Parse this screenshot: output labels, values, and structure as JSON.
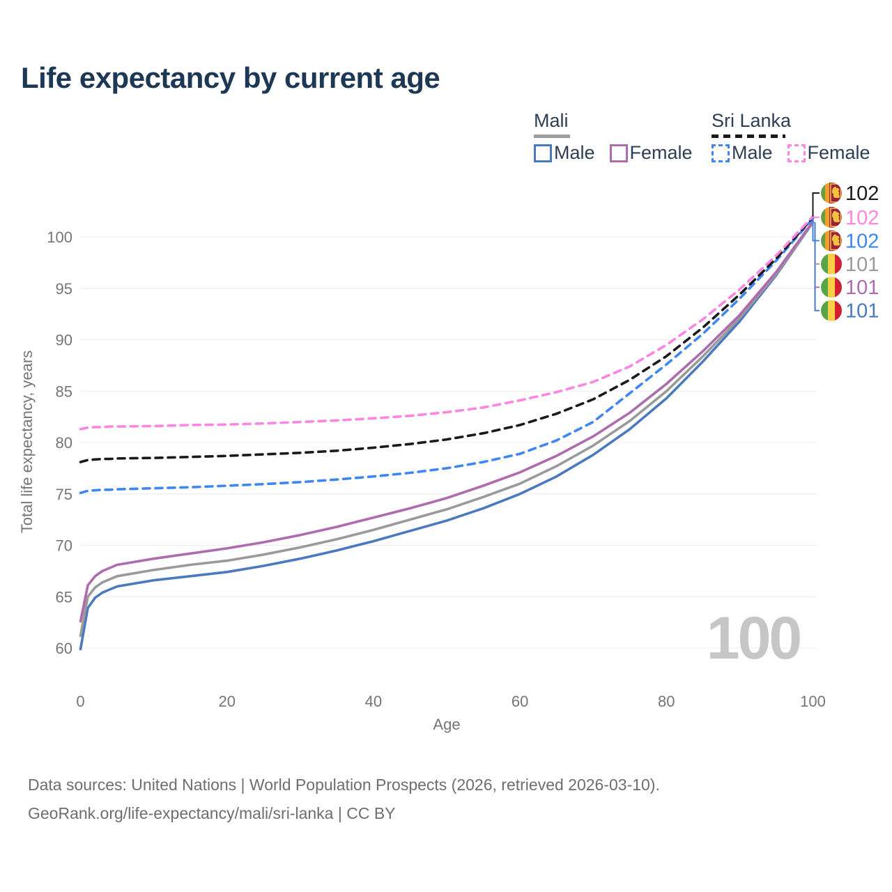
{
  "title": "Life expectancy by current age",
  "watermark": "100",
  "legend": {
    "groups": [
      {
        "label": "Mali",
        "line_style": "solid",
        "underline_color": "#9e9e9e",
        "items": [
          {
            "label": "Male",
            "color": "#4a79bf",
            "dash": false
          },
          {
            "label": "Female",
            "color": "#ae6cae",
            "dash": false
          }
        ]
      },
      {
        "label": "Sri Lanka",
        "line_style": "dashed",
        "underline_color": "#1a1a1a",
        "items": [
          {
            "label": "Male",
            "color": "#3e86f0",
            "dash": true
          },
          {
            "label": "Female",
            "color": "#ff85e2",
            "dash": true
          }
        ]
      }
    ]
  },
  "end_labels": [
    {
      "value": "102",
      "series": "Sri Lanka Total",
      "color": "#1a1a1a",
      "flag": "sri-lanka"
    },
    {
      "value": "102",
      "series": "Sri Lanka Female",
      "color": "#ff85e2",
      "flag": "sri-lanka"
    },
    {
      "value": "102",
      "series": "Sri Lanka Male",
      "color": "#3e86f0",
      "flag": "sri-lanka"
    },
    {
      "value": "101",
      "series": "Mali Total",
      "color": "#9a9a9a",
      "flag": "mali"
    },
    {
      "value": "101",
      "series": "Mali Female",
      "color": "#ae6cae",
      "flag": "mali"
    },
    {
      "value": "101",
      "series": "Mali Male",
      "color": "#4a79bf",
      "flag": "mali"
    }
  ],
  "footer": {
    "line1": "Data sources: United Nations | World Population Prospects (2026, retrieved 2026-03-10).",
    "line2": "GeoRank.org/life-expectancy/mali/sri-lanka | CC BY"
  },
  "colors": {
    "title": "#1d3854",
    "gridline": "#ececec",
    "tick_text": "#757575",
    "watermark": "#c6c6c6",
    "mali_flag": [
      "#57a545",
      "#f6ce47",
      "#d32030"
    ],
    "sri_lanka_flag": [
      "#6a9c41",
      "#efa02f",
      "#9b1f3c",
      "#f2c13e"
    ]
  },
  "chart_data": {
    "type": "line",
    "title": "Life expectancy by current age",
    "xlabel": "Age",
    "ylabel": "Total life expectancy, years",
    "xlim": [
      0,
      100
    ],
    "ylim": [
      60,
      102
    ],
    "x_ticks": [
      0,
      20,
      40,
      60,
      80,
      100
    ],
    "y_ticks": [
      60,
      65,
      70,
      75,
      80,
      85,
      90,
      95,
      100
    ],
    "grid": "horizontal-only",
    "legend_position": "top-right",
    "ages": [
      0,
      1,
      2,
      3,
      4,
      5,
      10,
      15,
      20,
      25,
      30,
      35,
      40,
      45,
      50,
      55,
      60,
      65,
      70,
      75,
      80,
      85,
      90,
      95,
      100
    ],
    "series": [
      {
        "name": "Mali Male",
        "color": "#4a79bf",
        "dash": false,
        "values": [
          59.9,
          63.9,
          64.9,
          65.4,
          65.7,
          66.0,
          66.6,
          67.0,
          67.4,
          68.0,
          68.7,
          69.5,
          70.4,
          71.4,
          72.4,
          73.6,
          75.0,
          76.7,
          78.8,
          81.3,
          84.3,
          87.9,
          91.8,
          96.3,
          101.4
        ]
      },
      {
        "name": "Mali Total",
        "color": "#9a9a9a",
        "dash": false,
        "values": [
          61.2,
          65.0,
          65.9,
          66.4,
          66.7,
          67.0,
          67.6,
          68.1,
          68.5,
          69.1,
          69.8,
          70.6,
          71.5,
          72.5,
          73.5,
          74.7,
          76.0,
          77.7,
          79.7,
          82.1,
          85.0,
          88.4,
          92.1,
          96.4,
          101.4
        ]
      },
      {
        "name": "Mali Female",
        "color": "#ae6cae",
        "dash": false,
        "values": [
          62.6,
          66.1,
          67.0,
          67.5,
          67.8,
          68.1,
          68.7,
          69.2,
          69.7,
          70.3,
          71.0,
          71.8,
          72.7,
          73.6,
          74.6,
          75.8,
          77.1,
          78.7,
          80.6,
          82.9,
          85.7,
          88.9,
          92.4,
          96.6,
          101.5
        ]
      },
      {
        "name": "Sri Lanka Male",
        "color": "#3e86f0",
        "dash": true,
        "values": [
          75.1,
          75.3,
          75.35,
          75.4,
          75.4,
          75.45,
          75.55,
          75.65,
          75.8,
          75.95,
          76.15,
          76.4,
          76.7,
          77.05,
          77.5,
          78.1,
          78.9,
          80.2,
          82.0,
          84.8,
          87.6,
          90.6,
          94.0,
          97.7,
          101.8
        ]
      },
      {
        "name": "Sri Lanka Total",
        "color": "#1a1a1a",
        "dash": true,
        "values": [
          78.1,
          78.3,
          78.35,
          78.4,
          78.4,
          78.45,
          78.5,
          78.6,
          78.7,
          78.85,
          79.0,
          79.2,
          79.5,
          79.85,
          80.3,
          80.9,
          81.7,
          82.8,
          84.2,
          86.1,
          88.4,
          91.2,
          94.4,
          97.9,
          101.9
        ]
      },
      {
        "name": "Sri Lanka Female",
        "color": "#ff85e2",
        "dash": true,
        "values": [
          81.3,
          81.45,
          81.5,
          81.5,
          81.55,
          81.55,
          81.6,
          81.7,
          81.75,
          81.85,
          82.0,
          82.15,
          82.35,
          82.6,
          82.95,
          83.4,
          84.1,
          84.9,
          85.9,
          87.4,
          89.5,
          92.0,
          94.9,
          98.2,
          102.0
        ]
      }
    ]
  }
}
